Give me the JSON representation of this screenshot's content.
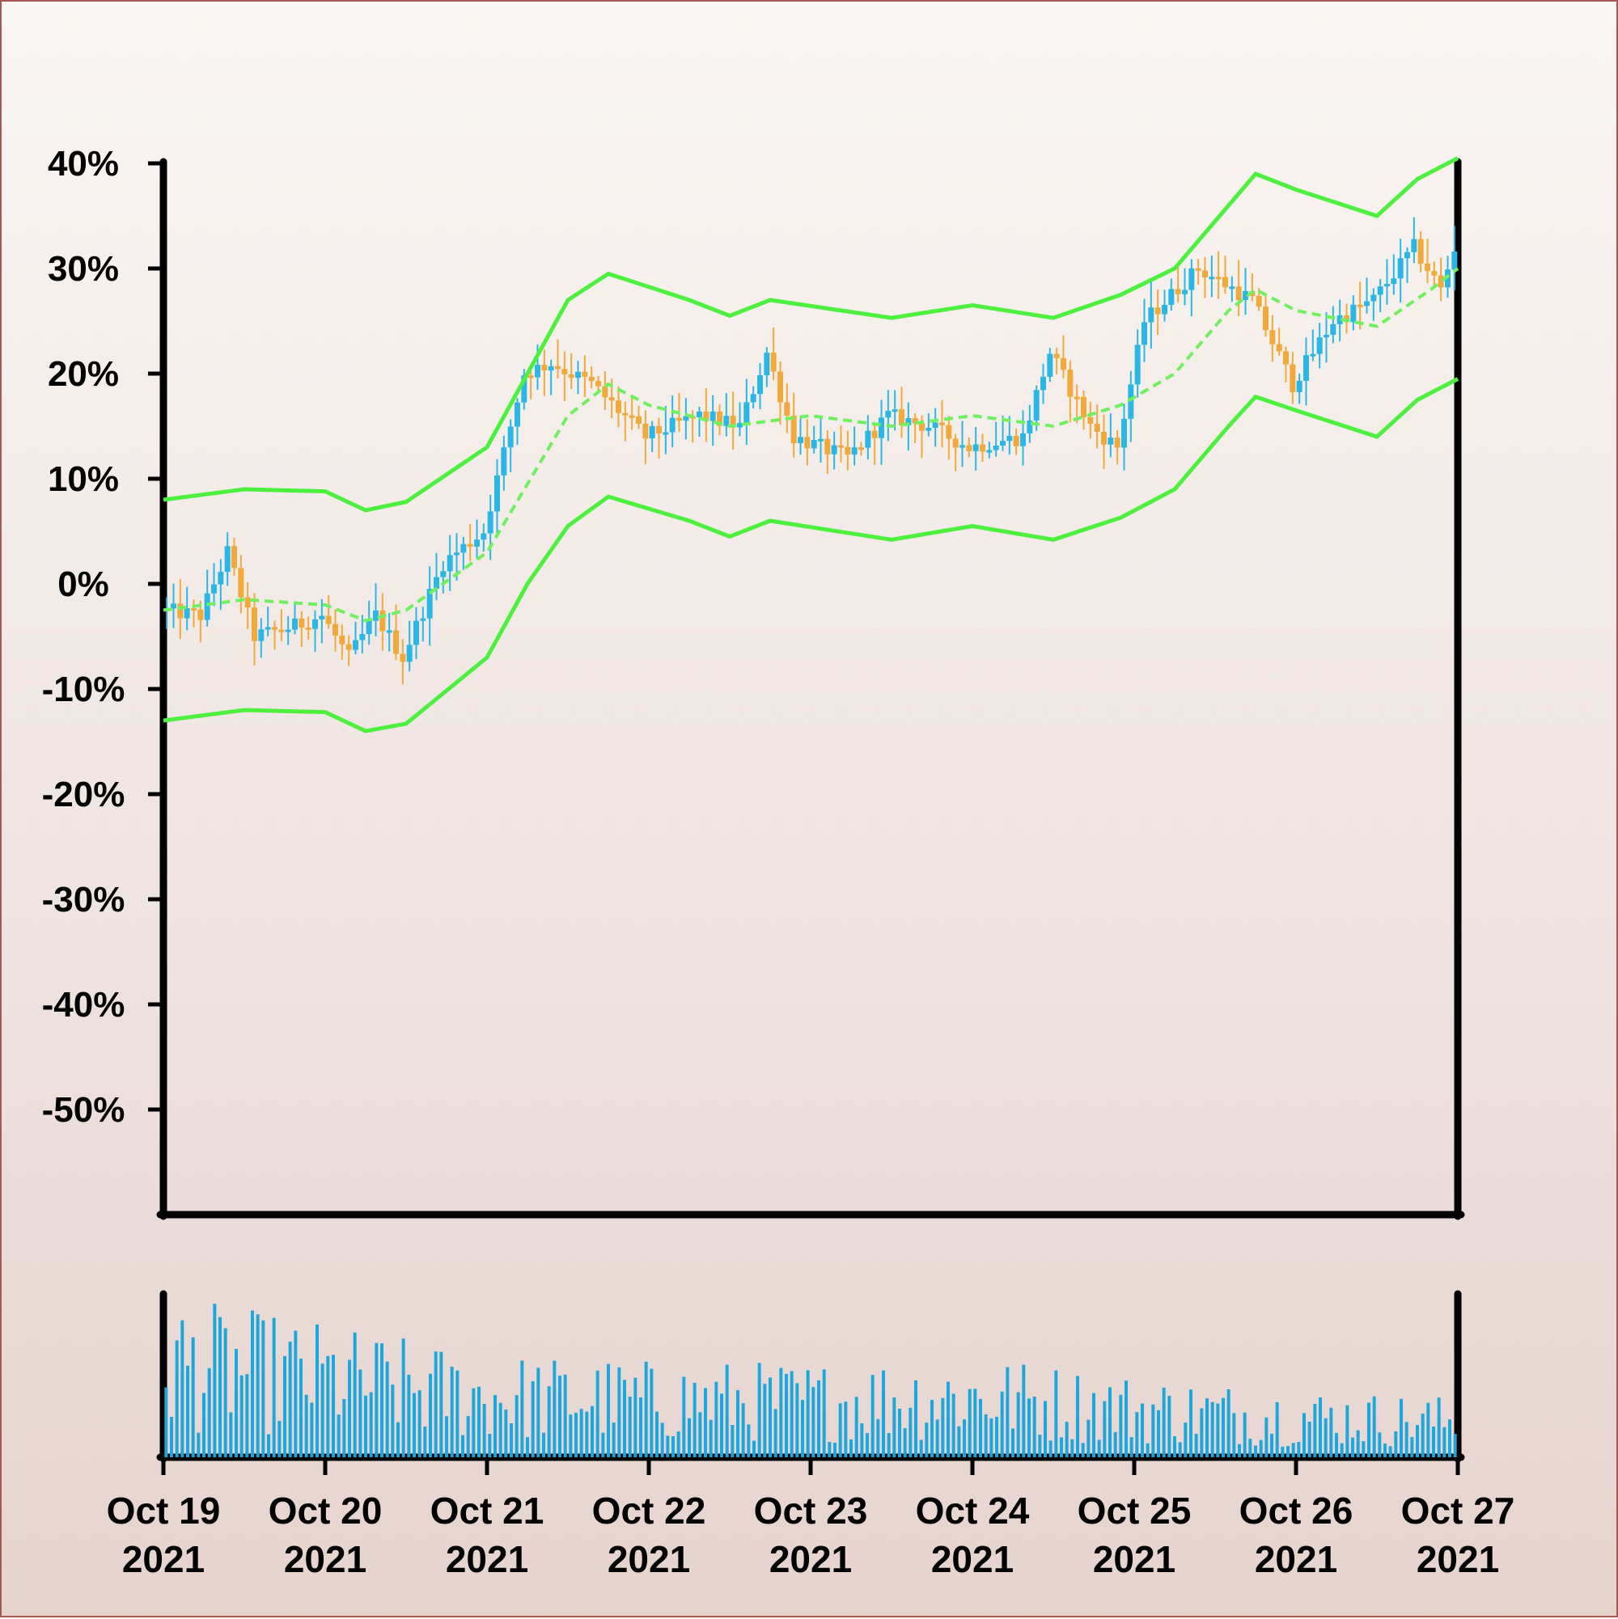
{
  "chart_data": {
    "type": "candlestick",
    "title": "",
    "xlabel": "",
    "ylabel": "",
    "ylim": [
      -60,
      40
    ],
    "y_ticks": [
      "40%",
      "30%",
      "20%",
      "10%",
      "0%",
      "-10%",
      "-20%",
      "-30%",
      "-40%",
      "-50%"
    ],
    "y_tick_values": [
      40,
      30,
      20,
      10,
      0,
      -10,
      -20,
      -30,
      -40,
      -50
    ],
    "x_range": [
      "2021-10-19 00:00",
      "2021-10-27 00:00"
    ],
    "x_ticks": [
      {
        "date": "2021-10-19",
        "label": [
          "Oct 19",
          "2021"
        ]
      },
      {
        "date": "2021-10-20",
        "label": [
          "Oct 20",
          "2021"
        ]
      },
      {
        "date": "2021-10-21",
        "label": [
          "Oct 21",
          "2021"
        ]
      },
      {
        "date": "2021-10-22",
        "label": [
          "Oct 22",
          "2021"
        ]
      },
      {
        "date": "2021-10-23",
        "label": [
          "Oct 23",
          "2021"
        ]
      },
      {
        "date": "2021-10-24",
        "label": [
          "Oct 24",
          "2021"
        ]
      },
      {
        "date": "2021-10-25",
        "label": [
          "Oct 25",
          "2021"
        ]
      },
      {
        "date": "2021-10-26",
        "label": [
          "Oct 26",
          "2021"
        ]
      },
      {
        "date": "2021-10-27",
        "label": [
          "Oct 27",
          "2021"
        ]
      }
    ],
    "colors": {
      "up": "#2bb7e6",
      "down": "#f2a93b",
      "band": "#4ef03f",
      "middle": "#6ff05e",
      "volume": "#1ea7dc",
      "axis": "#000000"
    },
    "price_path": [
      {
        "date": "2021-10-19 00:00",
        "value": -2.5
      },
      {
        "date": "2021-10-19 06:00",
        "value": -3
      },
      {
        "date": "2021-10-19 10:00",
        "value": 3
      },
      {
        "date": "2021-10-19 14:00",
        "value": -5
      },
      {
        "date": "2021-10-19 20:00",
        "value": -4
      },
      {
        "date": "2021-10-20 00:00",
        "value": -3
      },
      {
        "date": "2021-10-20 04:00",
        "value": -7
      },
      {
        "date": "2021-10-20 08:00",
        "value": -3
      },
      {
        "date": "2021-10-20 12:00",
        "value": -7
      },
      {
        "date": "2021-10-20 18:00",
        "value": 2
      },
      {
        "date": "2021-10-21 00:00",
        "value": 5
      },
      {
        "date": "2021-10-21 06:00",
        "value": 20
      },
      {
        "date": "2021-10-21 10:00",
        "value": 21
      },
      {
        "date": "2021-10-21 16:00",
        "value": 19
      },
      {
        "date": "2021-10-22 00:00",
        "value": 14
      },
      {
        "date": "2021-10-22 08:00",
        "value": 16
      },
      {
        "date": "2021-10-22 14:00",
        "value": 15
      },
      {
        "date": "2021-10-22 18:00",
        "value": 22
      },
      {
        "date": "2021-10-22 22:00",
        "value": 14
      },
      {
        "date": "2021-10-23 06:00",
        "value": 12
      },
      {
        "date": "2021-10-23 12:00",
        "value": 16
      },
      {
        "date": "2021-10-23 18:00",
        "value": 15
      },
      {
        "date": "2021-10-24 00:00",
        "value": 13
      },
      {
        "date": "2021-10-24 08:00",
        "value": 14
      },
      {
        "date": "2021-10-24 12:00",
        "value": 22
      },
      {
        "date": "2021-10-24 18:00",
        "value": 15
      },
      {
        "date": "2021-10-24 22:00",
        "value": 13
      },
      {
        "date": "2021-10-25 02:00",
        "value": 25
      },
      {
        "date": "2021-10-25 10:00",
        "value": 30
      },
      {
        "date": "2021-10-25 18:00",
        "value": 27
      },
      {
        "date": "2021-10-26 00:00",
        "value": 19
      },
      {
        "date": "2021-10-26 06:00",
        "value": 25
      },
      {
        "date": "2021-10-26 12:00",
        "value": 27
      },
      {
        "date": "2021-10-26 18:00",
        "value": 32
      },
      {
        "date": "2021-10-26 22:00",
        "value": 28
      },
      {
        "date": "2021-10-27 00:00",
        "value": 32
      }
    ],
    "middle_band": [
      {
        "date": "2021-10-19 00:00",
        "value": -2.5
      },
      {
        "date": "2021-10-19 12:00",
        "value": -1.5
      },
      {
        "date": "2021-10-20 00:00",
        "value": -2
      },
      {
        "date": "2021-10-20 06:00",
        "value": -3.5
      },
      {
        "date": "2021-10-20 12:00",
        "value": -2.5
      },
      {
        "date": "2021-10-21 00:00",
        "value": 3
      },
      {
        "date": "2021-10-21 12:00",
        "value": 16
      },
      {
        "date": "2021-10-21 18:00",
        "value": 19
      },
      {
        "date": "2021-10-22 00:00",
        "value": 17
      },
      {
        "date": "2021-10-22 12:00",
        "value": 15
      },
      {
        "date": "2021-10-23 00:00",
        "value": 16
      },
      {
        "date": "2021-10-23 12:00",
        "value": 15
      },
      {
        "date": "2021-10-24 00:00",
        "value": 16
      },
      {
        "date": "2021-10-24 12:00",
        "value": 15
      },
      {
        "date": "2021-10-24 22:00",
        "value": 17
      },
      {
        "date": "2021-10-25 06:00",
        "value": 20
      },
      {
        "date": "2021-10-25 14:00",
        "value": 26
      },
      {
        "date": "2021-10-25 18:00",
        "value": 28
      },
      {
        "date": "2021-10-26 00:00",
        "value": 26
      },
      {
        "date": "2021-10-26 12:00",
        "value": 24.5
      },
      {
        "date": "2021-10-26 20:00",
        "value": 28
      },
      {
        "date": "2021-10-27 00:00",
        "value": 30
      }
    ],
    "upper_band": [
      {
        "date": "2021-10-19 00:00",
        "value": 8
      },
      {
        "date": "2021-10-19 12:00",
        "value": 9
      },
      {
        "date": "2021-10-20 00:00",
        "value": 8.8
      },
      {
        "date": "2021-10-20 06:00",
        "value": 7
      },
      {
        "date": "2021-10-20 12:00",
        "value": 7.8
      },
      {
        "date": "2021-10-21 00:00",
        "value": 13
      },
      {
        "date": "2021-10-21 12:00",
        "value": 27
      },
      {
        "date": "2021-10-21 18:00",
        "value": 29.5
      },
      {
        "date": "2021-10-22 06:00",
        "value": 27
      },
      {
        "date": "2021-10-22 12:00",
        "value": 25.5
      },
      {
        "date": "2021-10-22 18:00",
        "value": 27
      },
      {
        "date": "2021-10-23 12:00",
        "value": 25.3
      },
      {
        "date": "2021-10-24 00:00",
        "value": 26.5
      },
      {
        "date": "2021-10-24 12:00",
        "value": 25.3
      },
      {
        "date": "2021-10-24 22:00",
        "value": 27.5
      },
      {
        "date": "2021-10-25 06:00",
        "value": 30
      },
      {
        "date": "2021-10-25 14:00",
        "value": 36
      },
      {
        "date": "2021-10-25 18:00",
        "value": 39
      },
      {
        "date": "2021-10-26 00:00",
        "value": 37.5
      },
      {
        "date": "2021-10-26 12:00",
        "value": 35
      },
      {
        "date": "2021-10-26 18:00",
        "value": 38.5
      },
      {
        "date": "2021-10-27 00:00",
        "value": 40.5
      }
    ],
    "lower_band": [
      {
        "date": "2021-10-19 00:00",
        "value": -13
      },
      {
        "date": "2021-10-19 12:00",
        "value": -12
      },
      {
        "date": "2021-10-20 00:00",
        "value": -12.2
      },
      {
        "date": "2021-10-20 06:00",
        "value": -14
      },
      {
        "date": "2021-10-20 12:00",
        "value": -13.3
      },
      {
        "date": "2021-10-21 00:00",
        "value": -7
      },
      {
        "date": "2021-10-21 06:00",
        "value": 0
      },
      {
        "date": "2021-10-21 12:00",
        "value": 5.5
      },
      {
        "date": "2021-10-21 18:00",
        "value": 8.3
      },
      {
        "date": "2021-10-22 06:00",
        "value": 6
      },
      {
        "date": "2021-10-22 12:00",
        "value": 4.5
      },
      {
        "date": "2021-10-22 18:00",
        "value": 6
      },
      {
        "date": "2021-10-23 12:00",
        "value": 4.2
      },
      {
        "date": "2021-10-24 00:00",
        "value": 5.5
      },
      {
        "date": "2021-10-24 12:00",
        "value": 4.2
      },
      {
        "date": "2021-10-24 22:00",
        "value": 6.3
      },
      {
        "date": "2021-10-25 06:00",
        "value": 9
      },
      {
        "date": "2021-10-25 14:00",
        "value": 15
      },
      {
        "date": "2021-10-25 18:00",
        "value": 17.8
      },
      {
        "date": "2021-10-26 00:00",
        "value": 16.5
      },
      {
        "date": "2021-10-26 12:00",
        "value": 14
      },
      {
        "date": "2021-10-26 18:00",
        "value": 17.5
      },
      {
        "date": "2021-10-27 00:00",
        "value": 19.5
      }
    ],
    "volume": {
      "bars_per_day": 30,
      "ylim": [
        0,
        100
      ],
      "levels": [
        {
          "date": "2021-10-19 00:00",
          "value": 75
        },
        {
          "date": "2021-10-20 00:00",
          "value": 62
        },
        {
          "date": "2021-10-21 00:00",
          "value": 48
        },
        {
          "date": "2021-10-22 00:00",
          "value": 45
        },
        {
          "date": "2021-10-23 00:00",
          "value": 44
        },
        {
          "date": "2021-10-24 00:00",
          "value": 48
        },
        {
          "date": "2021-10-25 00:00",
          "value": 38
        },
        {
          "date": "2021-10-26 00:00",
          "value": 32
        },
        {
          "date": "2021-10-27 00:00",
          "value": 28
        }
      ]
    }
  }
}
